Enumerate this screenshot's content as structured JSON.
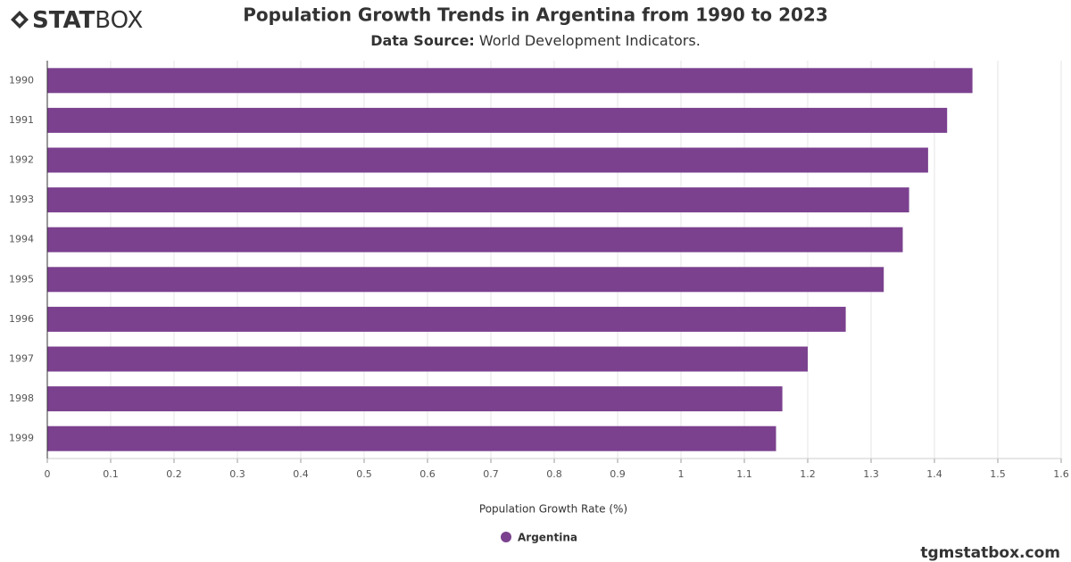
{
  "logo": {
    "bold": "STAT",
    "light": "BOX"
  },
  "footer": "tgmstatbox.com",
  "chart_data": {
    "type": "hbar",
    "title": "Population Growth Trends in Argentina from 1990 to 2023",
    "subtitle_label": "Data Source:",
    "subtitle": "World Development Indicators.",
    "x_label": "Population Growth Rate (%)",
    "categories": [
      "1990",
      "1991",
      "1992",
      "1993",
      "1994",
      "1995",
      "1996",
      "1997",
      "1998",
      "1999"
    ],
    "series": [
      {
        "name": "Argentina",
        "color": "#7b418f",
        "values": [
          1.46,
          1.42,
          1.39,
          1.36,
          1.35,
          1.32,
          1.26,
          1.2,
          1.16,
          1.15
        ]
      }
    ],
    "xlim": [
      0,
      1.6
    ],
    "xticks": [
      0,
      0.1,
      0.2,
      0.3,
      0.4,
      0.5,
      0.6,
      0.7,
      0.8,
      0.9,
      1,
      1.1,
      1.2,
      1.3,
      1.4,
      1.5,
      1.6
    ],
    "grid": true
  }
}
